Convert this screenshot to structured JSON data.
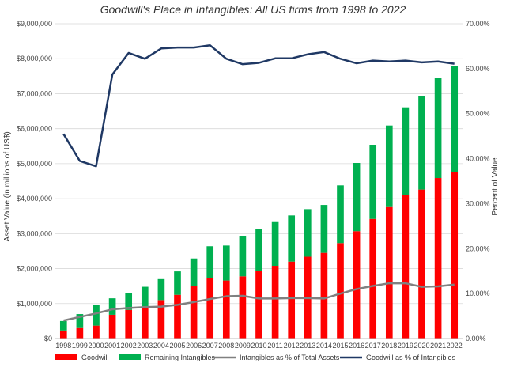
{
  "chart_data": {
    "type": "bar",
    "title": "Goodwill's Place in Intangibles: All US firms from 1998 to 2022",
    "ylabel": "Asset Value (in millions of US$)",
    "y2label": "Percent of Value",
    "ylim": [
      0,
      9000000
    ],
    "y2lim": [
      0,
      0.7
    ],
    "yticks": [
      "$0",
      "$1,000,000",
      "$2,000,000",
      "$3,000,000",
      "$4,000,000",
      "$5,000,000",
      "$6,000,000",
      "$7,000,000",
      "$8,000,000",
      "$9,000,000"
    ],
    "y2ticks": [
      "0.00%",
      "10.00%",
      "20.00%",
      "30.00%",
      "40.00%",
      "50.00%",
      "60.00%",
      "70.00%"
    ],
    "grid": true,
    "legend_position": "bottom",
    "categories": [
      "1998",
      "1999",
      "2000",
      "2001",
      "2002",
      "2003",
      "2004",
      "2005",
      "2006",
      "2007",
      "2008",
      "2009",
      "2010",
      "2011",
      "2012",
      "2013",
      "2014",
      "2015",
      "2016",
      "2017",
      "2018",
      "2019",
      "2020",
      "2021",
      "2022"
    ],
    "series": [
      {
        "name": "Goodwill",
        "kind": "bar-stacked",
        "axis": "left",
        "color": "#ff0000",
        "values": [
          230000,
          300000,
          370000,
          680000,
          820000,
          920000,
          1100000,
          1250000,
          1500000,
          1730000,
          1660000,
          1780000,
          1930000,
          2080000,
          2200000,
          2340000,
          2450000,
          2730000,
          3070000,
          3420000,
          3760000,
          4100000,
          4260000,
          4590000,
          4750000
        ]
      },
      {
        "name": "Remaining Intangibles",
        "kind": "bar-stacked",
        "axis": "left",
        "color": "#00b050",
        "values": [
          270000,
          400000,
          600000,
          470000,
          470000,
          560000,
          600000,
          670000,
          790000,
          910000,
          1000000,
          1140000,
          1210000,
          1250000,
          1320000,
          1360000,
          1370000,
          1650000,
          1950000,
          2120000,
          2330000,
          2510000,
          2670000,
          2870000,
          3030000
        ]
      },
      {
        "name": "Intangibles as % of Total Assets",
        "kind": "line",
        "axis": "right",
        "color": "#808080",
        "values": [
          0.04,
          0.048,
          0.056,
          0.065,
          0.068,
          0.07,
          0.071,
          0.075,
          0.081,
          0.088,
          0.094,
          0.095,
          0.089,
          0.089,
          0.09,
          0.09,
          0.089,
          0.1,
          0.11,
          0.117,
          0.123,
          0.123,
          0.115,
          0.116,
          0.12
        ]
      },
      {
        "name": "Goodwill as % of Intangibles",
        "kind": "line",
        "axis": "right",
        "color": "#1f3864",
        "values": [
          0.455,
          0.395,
          0.383,
          0.587,
          0.635,
          0.622,
          0.645,
          0.647,
          0.647,
          0.652,
          0.622,
          0.61,
          0.613,
          0.623,
          0.623,
          0.632,
          0.637,
          0.622,
          0.612,
          0.618,
          0.616,
          0.618,
          0.614,
          0.616,
          0.611
        ]
      }
    ]
  }
}
